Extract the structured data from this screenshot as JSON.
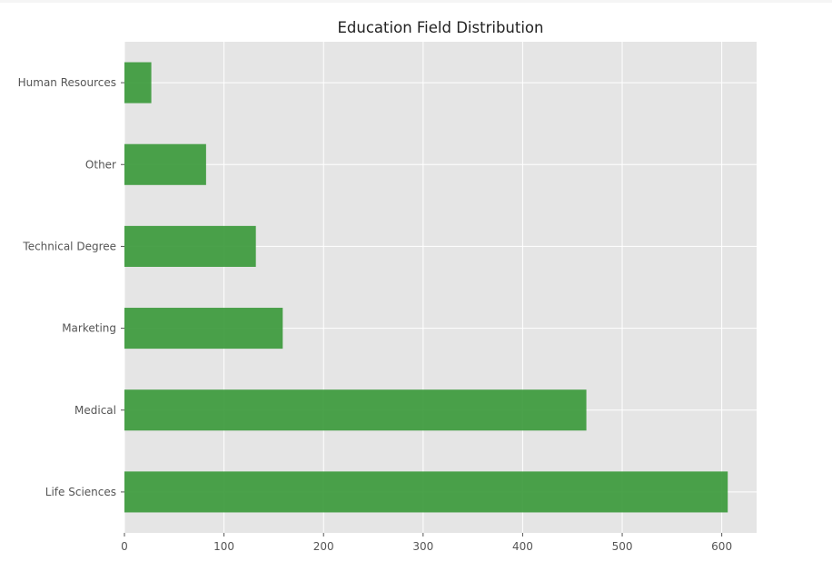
{
  "chart_data": {
    "type": "bar",
    "orientation": "horizontal",
    "title": "Education Field Distribution",
    "xlabel": "",
    "ylabel": "",
    "categories": [
      "Life Sciences",
      "Medical",
      "Marketing",
      "Technical Degree",
      "Other",
      "Human Resources"
    ],
    "values": [
      606,
      464,
      159,
      132,
      82,
      27
    ],
    "xlim": [
      0,
      635
    ],
    "xticks": [
      0,
      100,
      200,
      300,
      400,
      500,
      600
    ],
    "grid": true,
    "legend": "none",
    "colors": {
      "bar": "#3c9a3c",
      "plot_background": "#e5e5e5",
      "grid": "#ffffff"
    }
  }
}
